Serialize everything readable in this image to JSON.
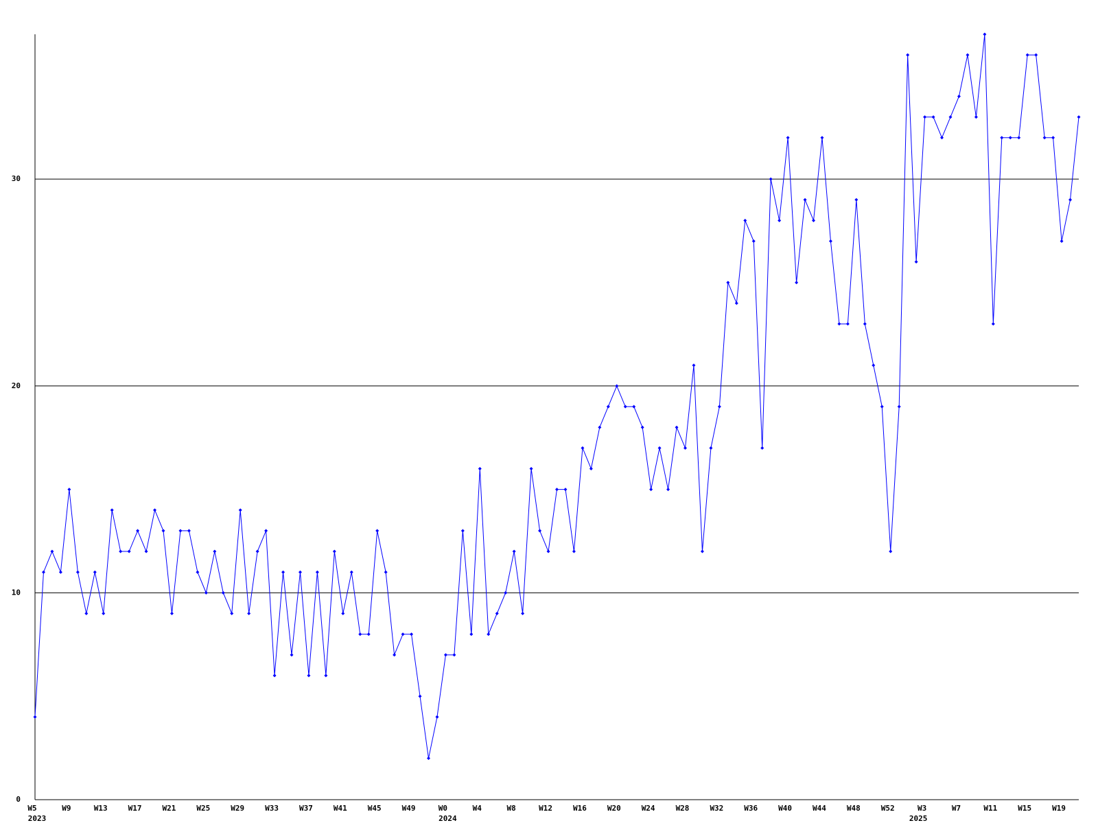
{
  "chart_data": {
    "type": "line",
    "categories": [
      "W5",
      null,
      null,
      null,
      "W9",
      null,
      null,
      null,
      "W13",
      null,
      null,
      null,
      "W17",
      null,
      null,
      null,
      "W21",
      null,
      null,
      null,
      "W25",
      null,
      null,
      null,
      "W29",
      null,
      null,
      null,
      "W33",
      null,
      null,
      null,
      "W37",
      null,
      null,
      null,
      "W41",
      null,
      null,
      null,
      "W45",
      null,
      null,
      null,
      "W49",
      null,
      null,
      null,
      "W0",
      null,
      null,
      null,
      "W4",
      null,
      null,
      null,
      "W8",
      null,
      null,
      null,
      "W12",
      null,
      null,
      null,
      "W16",
      null,
      null,
      null,
      "W20",
      null,
      null,
      null,
      "W24",
      null,
      null,
      null,
      "W28",
      null,
      null,
      null,
      "W32",
      null,
      null,
      null,
      "W36",
      null,
      null,
      null,
      "W40",
      null,
      null,
      null,
      "W44",
      null,
      null,
      null,
      "W48",
      null,
      null,
      null,
      "W52",
      null,
      null,
      null,
      "W3",
      null,
      null,
      null,
      "W7",
      null,
      null,
      null,
      "W11",
      null,
      null,
      null,
      "W15",
      null,
      null,
      null,
      "W19",
      null,
      null
    ],
    "x_years": [
      "2023",
      null,
      null,
      null,
      null,
      null,
      null,
      null,
      null,
      null,
      null,
      null,
      null,
      null,
      null,
      null,
      null,
      null,
      null,
      null,
      null,
      null,
      null,
      null,
      null,
      null,
      null,
      null,
      null,
      null,
      null,
      null,
      null,
      null,
      null,
      null,
      null,
      null,
      null,
      null,
      null,
      null,
      null,
      null,
      null,
      null,
      null,
      null,
      "2024",
      null,
      null,
      null,
      null,
      null,
      null,
      null,
      null,
      null,
      null,
      null,
      null,
      null,
      null,
      null,
      null,
      null,
      null,
      null,
      null,
      null,
      null,
      null,
      null,
      null,
      null,
      null,
      null,
      null,
      null,
      null,
      null,
      null,
      null,
      null,
      null,
      null,
      null,
      null,
      null,
      null,
      null,
      null,
      null,
      null,
      null,
      null,
      null,
      null,
      null,
      null,
      null,
      null,
      null,
      "2025",
      null,
      null,
      null,
      null,
      null,
      null,
      null,
      null,
      null,
      null,
      null,
      null,
      null,
      null,
      null,
      null,
      null,
      null,
      null,
      null,
      null
    ],
    "series": [
      {
        "color": "#0000ff",
        "values": [
          4,
          11,
          12,
          11,
          15,
          11,
          9,
          11,
          9,
          14,
          12,
          12,
          13,
          12,
          14,
          13,
          9,
          13,
          13,
          11,
          10,
          12,
          10,
          9,
          14,
          9,
          12,
          13,
          6,
          11,
          7,
          11,
          6,
          11,
          6,
          12,
          9,
          11,
          8,
          8,
          13,
          11,
          7,
          8,
          8,
          5,
          2,
          4,
          7,
          7,
          13,
          8,
          16,
          8,
          9,
          10,
          12,
          9,
          16,
          13,
          12,
          15,
          15,
          12,
          17,
          16,
          18,
          19,
          20,
          19,
          19,
          18,
          15,
          17,
          15,
          18,
          17,
          21,
          12,
          17,
          19,
          25,
          24,
          28,
          27,
          17,
          30,
          28,
          32,
          25,
          29,
          28,
          32,
          27,
          23,
          23,
          29,
          23,
          21,
          19,
          12,
          19,
          36,
          26,
          33,
          33,
          32,
          33,
          34,
          36,
          33,
          37,
          23,
          32,
          32,
          32,
          36,
          36,
          32,
          32,
          27,
          29,
          33
        ]
      }
    ],
    "ylim": [
      0,
      37
    ],
    "yticks": [
      0,
      10,
      20,
      30
    ],
    "grid": true
  }
}
